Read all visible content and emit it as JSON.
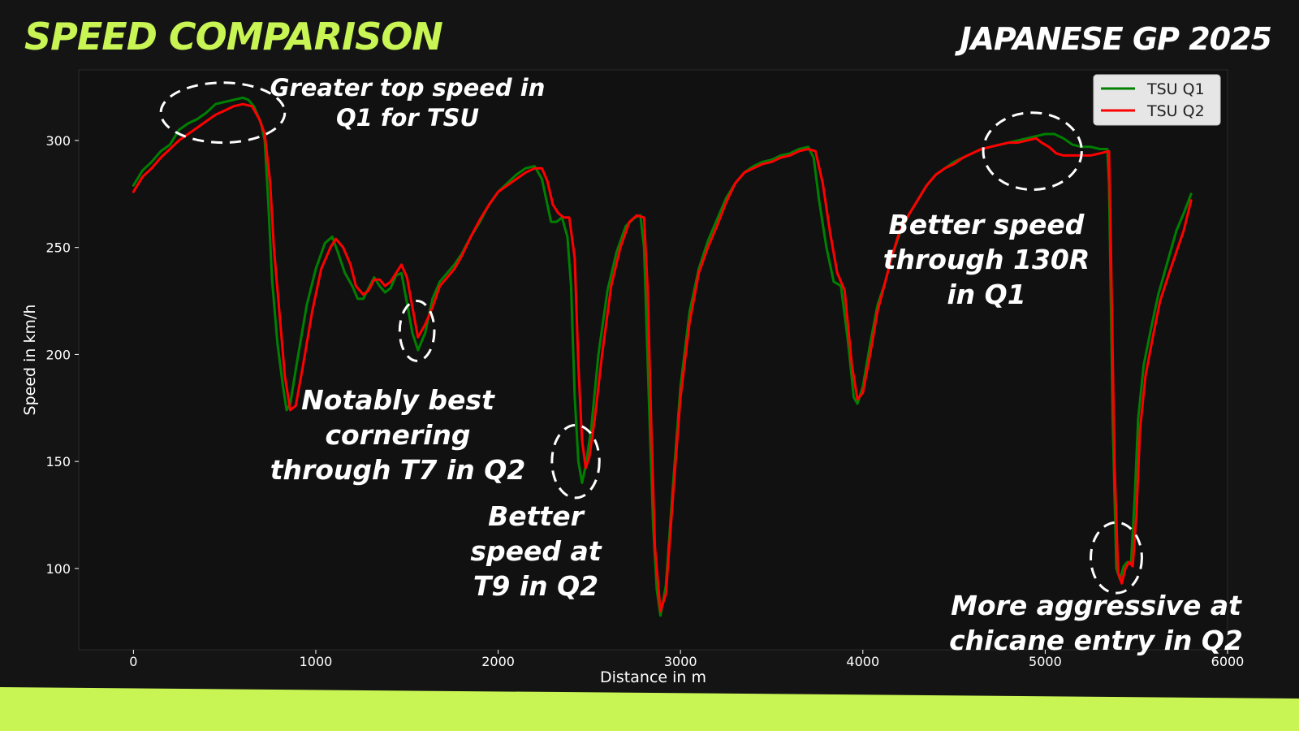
{
  "header": {
    "title": "SPEED COMPARISON",
    "subtitle": "JAPANESE GP 2025"
  },
  "colors": {
    "accent": "#c8f553",
    "background": "#141414",
    "plot_background": "#111111",
    "q1": "#008000",
    "q2": "#ff0000"
  },
  "chart_data": {
    "type": "line",
    "xlabel": "Distance in m",
    "ylabel": "Speed in km/h",
    "xlim": [
      -300,
      6000
    ],
    "ylim": [
      62,
      333
    ],
    "xticks": [
      0,
      1000,
      2000,
      3000,
      4000,
      5000,
      6000
    ],
    "yticks": [
      100,
      150,
      200,
      250,
      300
    ],
    "grid": false,
    "legend_position": "top-right",
    "series": [
      {
        "name": "TSU Q1",
        "color": "#008000",
        "points": [
          [
            0,
            279
          ],
          [
            50,
            286
          ],
          [
            100,
            290
          ],
          [
            150,
            295
          ],
          [
            200,
            298
          ],
          [
            250,
            305
          ],
          [
            300,
            308
          ],
          [
            350,
            310
          ],
          [
            400,
            313
          ],
          [
            450,
            317
          ],
          [
            500,
            318
          ],
          [
            550,
            319
          ],
          [
            600,
            320
          ],
          [
            630,
            319
          ],
          [
            660,
            316
          ],
          [
            700,
            308
          ],
          [
            720,
            300
          ],
          [
            740,
            270
          ],
          [
            760,
            235
          ],
          [
            790,
            205
          ],
          [
            820,
            185
          ],
          [
            840,
            174
          ],
          [
            860,
            177
          ],
          [
            900,
            198
          ],
          [
            950,
            223
          ],
          [
            1000,
            240
          ],
          [
            1050,
            252
          ],
          [
            1090,
            255
          ],
          [
            1120,
            248
          ],
          [
            1160,
            238
          ],
          [
            1200,
            232
          ],
          [
            1230,
            226
          ],
          [
            1260,
            226
          ],
          [
            1290,
            231
          ],
          [
            1320,
            236
          ],
          [
            1350,
            232
          ],
          [
            1380,
            229
          ],
          [
            1410,
            231
          ],
          [
            1440,
            237
          ],
          [
            1470,
            238
          ],
          [
            1500,
            224
          ],
          [
            1530,
            210
          ],
          [
            1560,
            202
          ],
          [
            1600,
            210
          ],
          [
            1640,
            226
          ],
          [
            1680,
            234
          ],
          [
            1720,
            238
          ],
          [
            1760,
            242
          ],
          [
            1800,
            247
          ],
          [
            1850,
            255
          ],
          [
            1900,
            262
          ],
          [
            1950,
            270
          ],
          [
            2000,
            276
          ],
          [
            2050,
            280
          ],
          [
            2100,
            284
          ],
          [
            2150,
            287
          ],
          [
            2200,
            288
          ],
          [
            2240,
            282
          ],
          [
            2270,
            270
          ],
          [
            2290,
            262
          ],
          [
            2320,
            262
          ],
          [
            2350,
            264
          ],
          [
            2380,
            255
          ],
          [
            2400,
            232
          ],
          [
            2420,
            180
          ],
          [
            2440,
            150
          ],
          [
            2460,
            140
          ],
          [
            2480,
            148
          ],
          [
            2510,
            165
          ],
          [
            2550,
            200
          ],
          [
            2600,
            230
          ],
          [
            2650,
            248
          ],
          [
            2700,
            260
          ],
          [
            2750,
            264
          ],
          [
            2780,
            265
          ],
          [
            2800,
            250
          ],
          [
            2830,
            170
          ],
          [
            2850,
            120
          ],
          [
            2870,
            90
          ],
          [
            2890,
            78
          ],
          [
            2920,
            92
          ],
          [
            2960,
            140
          ],
          [
            3000,
            185
          ],
          [
            3050,
            220
          ],
          [
            3100,
            240
          ],
          [
            3150,
            253
          ],
          [
            3200,
            263
          ],
          [
            3250,
            273
          ],
          [
            3300,
            280
          ],
          [
            3350,
            285
          ],
          [
            3400,
            288
          ],
          [
            3450,
            290
          ],
          [
            3500,
            291
          ],
          [
            3550,
            293
          ],
          [
            3600,
            294
          ],
          [
            3650,
            296
          ],
          [
            3700,
            297
          ],
          [
            3730,
            292
          ],
          [
            3760,
            272
          ],
          [
            3800,
            250
          ],
          [
            3840,
            234
          ],
          [
            3880,
            232
          ],
          [
            3920,
            205
          ],
          [
            3950,
            180
          ],
          [
            3970,
            177
          ],
          [
            4000,
            185
          ],
          [
            4040,
            205
          ],
          [
            4080,
            223
          ],
          [
            4120,
            233
          ],
          [
            4160,
            246
          ],
          [
            4200,
            256
          ],
          [
            4250,
            265
          ],
          [
            4300,
            272
          ],
          [
            4350,
            279
          ],
          [
            4400,
            284
          ],
          [
            4450,
            287
          ],
          [
            4500,
            290
          ],
          [
            4550,
            292
          ],
          [
            4600,
            294
          ],
          [
            4650,
            296
          ],
          [
            4700,
            297
          ],
          [
            4750,
            298
          ],
          [
            4800,
            299
          ],
          [
            4850,
            300
          ],
          [
            4900,
            301
          ],
          [
            4950,
            302
          ],
          [
            5000,
            303
          ],
          [
            5050,
            303
          ],
          [
            5100,
            301
          ],
          [
            5150,
            298
          ],
          [
            5200,
            297
          ],
          [
            5250,
            297
          ],
          [
            5300,
            296
          ],
          [
            5340,
            296
          ],
          [
            5350,
            280
          ],
          [
            5370,
            170
          ],
          [
            5390,
            100
          ],
          [
            5410,
            95
          ],
          [
            5430,
            101
          ],
          [
            5450,
            103
          ],
          [
            5470,
            102
          ],
          [
            5490,
            132
          ],
          [
            5510,
            170
          ],
          [
            5540,
            195
          ],
          [
            5580,
            212
          ],
          [
            5620,
            228
          ],
          [
            5680,
            246
          ],
          [
            5720,
            258
          ],
          [
            5760,
            266
          ],
          [
            5800,
            275
          ]
        ]
      },
      {
        "name": "TSU Q2",
        "color": "#ff0000",
        "points": [
          [
            0,
            276
          ],
          [
            50,
            283
          ],
          [
            100,
            287
          ],
          [
            150,
            292
          ],
          [
            200,
            296
          ],
          [
            250,
            300
          ],
          [
            300,
            303
          ],
          [
            350,
            306
          ],
          [
            400,
            309
          ],
          [
            450,
            312
          ],
          [
            500,
            314
          ],
          [
            550,
            316
          ],
          [
            600,
            317
          ],
          [
            650,
            316
          ],
          [
            690,
            310
          ],
          [
            720,
            303
          ],
          [
            750,
            280
          ],
          [
            770,
            250
          ],
          [
            800,
            220
          ],
          [
            830,
            190
          ],
          [
            860,
            174
          ],
          [
            890,
            176
          ],
          [
            930,
            195
          ],
          [
            980,
            220
          ],
          [
            1030,
            240
          ],
          [
            1080,
            250
          ],
          [
            1110,
            254
          ],
          [
            1150,
            250
          ],
          [
            1190,
            242
          ],
          [
            1220,
            232
          ],
          [
            1260,
            228
          ],
          [
            1290,
            230
          ],
          [
            1320,
            235
          ],
          [
            1350,
            235
          ],
          [
            1380,
            232
          ],
          [
            1410,
            234
          ],
          [
            1440,
            238
          ],
          [
            1470,
            242
          ],
          [
            1500,
            236
          ],
          [
            1530,
            222
          ],
          [
            1560,
            208
          ],
          [
            1600,
            214
          ],
          [
            1640,
            222
          ],
          [
            1680,
            232
          ],
          [
            1720,
            236
          ],
          [
            1760,
            240
          ],
          [
            1800,
            246
          ],
          [
            1850,
            255
          ],
          [
            1900,
            263
          ],
          [
            1950,
            270
          ],
          [
            2000,
            276
          ],
          [
            2050,
            279
          ],
          [
            2100,
            282
          ],
          [
            2150,
            285
          ],
          [
            2200,
            287
          ],
          [
            2240,
            287
          ],
          [
            2270,
            281
          ],
          [
            2300,
            270
          ],
          [
            2330,
            266
          ],
          [
            2360,
            264
          ],
          [
            2390,
            264
          ],
          [
            2420,
            245
          ],
          [
            2440,
            195
          ],
          [
            2460,
            160
          ],
          [
            2480,
            147
          ],
          [
            2500,
            152
          ],
          [
            2530,
            170
          ],
          [
            2570,
            200
          ],
          [
            2620,
            232
          ],
          [
            2670,
            250
          ],
          [
            2720,
            262
          ],
          [
            2760,
            265
          ],
          [
            2800,
            264
          ],
          [
            2820,
            230
          ],
          [
            2840,
            165
          ],
          [
            2860,
            110
          ],
          [
            2890,
            80
          ],
          [
            2920,
            88
          ],
          [
            2960,
            135
          ],
          [
            3000,
            180
          ],
          [
            3050,
            215
          ],
          [
            3100,
            238
          ],
          [
            3150,
            250
          ],
          [
            3200,
            260
          ],
          [
            3250,
            271
          ],
          [
            3300,
            280
          ],
          [
            3350,
            285
          ],
          [
            3400,
            287
          ],
          [
            3450,
            289
          ],
          [
            3500,
            290
          ],
          [
            3550,
            292
          ],
          [
            3600,
            293
          ],
          [
            3650,
            295
          ],
          [
            3700,
            296
          ],
          [
            3740,
            295
          ],
          [
            3780,
            280
          ],
          [
            3820,
            257
          ],
          [
            3860,
            238
          ],
          [
            3900,
            230
          ],
          [
            3940,
            195
          ],
          [
            3970,
            179
          ],
          [
            4000,
            182
          ],
          [
            4040,
            200
          ],
          [
            4080,
            220
          ],
          [
            4120,
            233
          ],
          [
            4160,
            246
          ],
          [
            4200,
            257
          ],
          [
            4250,
            265
          ],
          [
            4300,
            272
          ],
          [
            4350,
            279
          ],
          [
            4400,
            284
          ],
          [
            4450,
            287
          ],
          [
            4500,
            289
          ],
          [
            4550,
            292
          ],
          [
            4600,
            294
          ],
          [
            4650,
            296
          ],
          [
            4700,
            297
          ],
          [
            4750,
            298
          ],
          [
            4800,
            299
          ],
          [
            4850,
            299
          ],
          [
            4900,
            300
          ],
          [
            4950,
            301
          ],
          [
            4980,
            299
          ],
          [
            5020,
            297
          ],
          [
            5060,
            294
          ],
          [
            5100,
            293
          ],
          [
            5150,
            293
          ],
          [
            5200,
            293
          ],
          [
            5250,
            293
          ],
          [
            5300,
            294
          ],
          [
            5350,
            295
          ],
          [
            5360,
            250
          ],
          [
            5380,
            150
          ],
          [
            5400,
            98
          ],
          [
            5420,
            93
          ],
          [
            5440,
            100
          ],
          [
            5460,
            103
          ],
          [
            5480,
            101
          ],
          [
            5500,
            125
          ],
          [
            5520,
            165
          ],
          [
            5550,
            190
          ],
          [
            5590,
            208
          ],
          [
            5630,
            225
          ],
          [
            5680,
            238
          ],
          [
            5720,
            248
          ],
          [
            5760,
            258
          ],
          [
            5800,
            272
          ]
        ]
      }
    ],
    "annotations": [
      {
        "lines": [
          "Greater top speed in",
          "Q1 for TSU"
        ]
      },
      {
        "lines": [
          "Notably best",
          "cornering",
          "through T7 in Q2"
        ]
      },
      {
        "lines": [
          "Better",
          "speed at",
          "T9 in Q2"
        ]
      },
      {
        "lines": [
          "Better speed",
          "through 130R",
          "in Q1"
        ]
      },
      {
        "lines": [
          "More aggressive at",
          "chicane entry in Q2"
        ]
      }
    ]
  }
}
